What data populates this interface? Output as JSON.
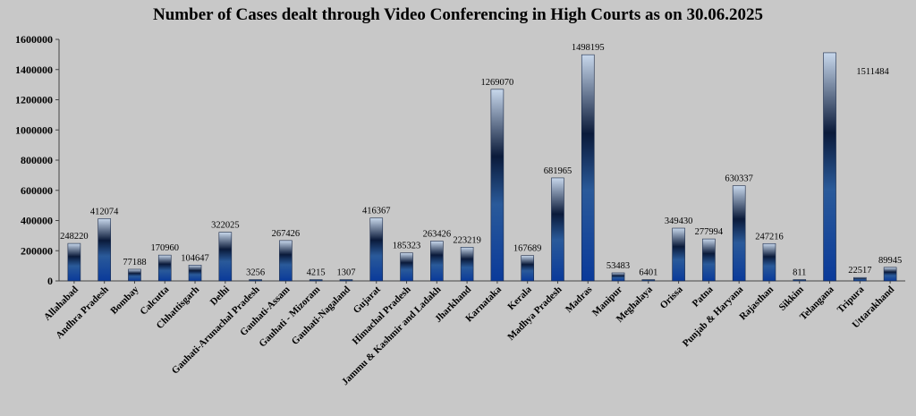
{
  "chart_data": {
    "type": "bar",
    "title": "Number of Cases dealt through Video Conferencing in High Courts as on 30.06.2025",
    "xlabel": "",
    "ylabel": "",
    "ylim": [
      0,
      1600000
    ],
    "yticks": [
      0,
      200000,
      400000,
      600000,
      800000,
      1000000,
      1200000,
      1400000,
      1600000
    ],
    "ytick_labels": [
      "0",
      "200000",
      "400000",
      "600000",
      "800000",
      "1000000",
      "1200000",
      "1400000",
      "1600000"
    ],
    "grid": false,
    "legend": "none",
    "bar_colors": {
      "dark": "#0a1a3a",
      "mid": "#2a5a9a",
      "light": "#c8d8ec",
      "base": "#0a3a9a"
    },
    "categories": [
      "Allahabad",
      "Andhra Pradesh",
      "Bombay",
      "Calcutta",
      "Chhattisgarh",
      "Delhi",
      "Gauhati-Arunachal Pradesh",
      "Gauhati-Assam",
      "Gauhati - Mizoram",
      "Gauhati-Nagaland",
      "Gujarat",
      "Himachal Pradesh",
      "Jammu & Kashmir and Ladakh",
      "Jharkhand",
      "Karnataka",
      "Kerala",
      "Madhya Pradesh",
      "Madras",
      "Manipur",
      "Meghalaya",
      "Orissa",
      "Patna",
      "Punjab & Haryana",
      "Rajasthan",
      "Sikkim",
      "Telangana",
      "Tripura",
      "Uttarakhand"
    ],
    "values": [
      248220,
      412074,
      77188,
      170960,
      104647,
      322025,
      3256,
      267426,
      4215,
      1307,
      416367,
      185323,
      263426,
      223219,
      1269070,
      167689,
      681965,
      1498195,
      53483,
      6401,
      349430,
      277994,
      630337,
      247216,
      811,
      1511484,
      22517,
      89945
    ],
    "value_labels": [
      "248220",
      "412074",
      "77188",
      "170960",
      "104647",
      "322025",
      "3256",
      "267426",
      "4215",
      "1307",
      "416367",
      "185323",
      "263426",
      "223219",
      "1269070",
      "167689",
      "681965",
      "1498195",
      "53483",
      "6401",
      "349430",
      "277994",
      "630337",
      "247216",
      "811",
      "1511484",
      "22517",
      "89945"
    ]
  }
}
